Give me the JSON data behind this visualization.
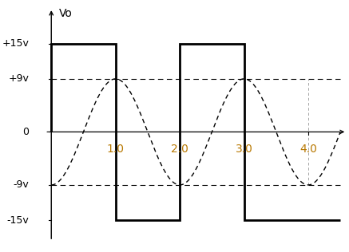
{
  "title": "Vo",
  "xlim": [
    -0.3,
    4.6
  ],
  "ylim": [
    -20,
    22
  ],
  "square_wave_amplitude": 15,
  "curve_amplitude": 9,
  "period": 2.0,
  "x_tick_labels": [
    "1.0",
    "2.0",
    "3.0",
    "4.0"
  ],
  "x_tick_positions": [
    1.0,
    2.0,
    3.0,
    4.0
  ],
  "y_tick_labels": [
    "+15v",
    "+9v",
    "0",
    "-9v",
    "-15v"
  ],
  "y_tick_positions": [
    15,
    9,
    0,
    -9,
    -15
  ],
  "dashed_levels": [
    9,
    -9
  ],
  "square_color": "#000000",
  "curve_color": "#000000",
  "background_color": "#ffffff",
  "square_linewidth": 2.0,
  "curve_linewidth": 1.0,
  "label_color_x": "#b87800",
  "label_color_y": "#000000",
  "axis_start_x": 0.0,
  "y_label_x_offset": -0.35,
  "y_label_fontsize": 9,
  "x_label_fontsize": 10
}
